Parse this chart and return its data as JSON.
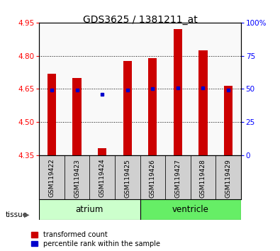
{
  "title": "GDS3625 / 1381211_at",
  "samples": [
    "GSM119422",
    "GSM119423",
    "GSM119424",
    "GSM119425",
    "GSM119426",
    "GSM119427",
    "GSM119428",
    "GSM119429"
  ],
  "bar_tops": [
    4.72,
    4.7,
    4.38,
    4.775,
    4.79,
    4.92,
    4.825,
    4.665
  ],
  "bar_bottom": 4.35,
  "percentile_values": [
    4.645,
    4.645,
    4.625,
    4.645,
    4.65,
    4.655,
    4.655,
    4.645
  ],
  "ylim": [
    4.35,
    4.95
  ],
  "yticks_left": [
    4.35,
    4.5,
    4.65,
    4.8,
    4.95
  ],
  "yticks_right": [
    0,
    25,
    50,
    75,
    100
  ],
  "bar_color": "#cc0000",
  "dot_color": "#0000cc",
  "atrium_indices": [
    0,
    1,
    2,
    3
  ],
  "ventricle_indices": [
    4,
    5,
    6,
    7
  ],
  "atrium_color": "#ccffcc",
  "ventricle_color": "#66ee66",
  "sample_box_color": "#d0d0d0",
  "bar_width": 0.35,
  "legend_items": [
    "transformed count",
    "percentile rank within the sample"
  ],
  "legend_colors": [
    "#cc0000",
    "#0000cc"
  ]
}
